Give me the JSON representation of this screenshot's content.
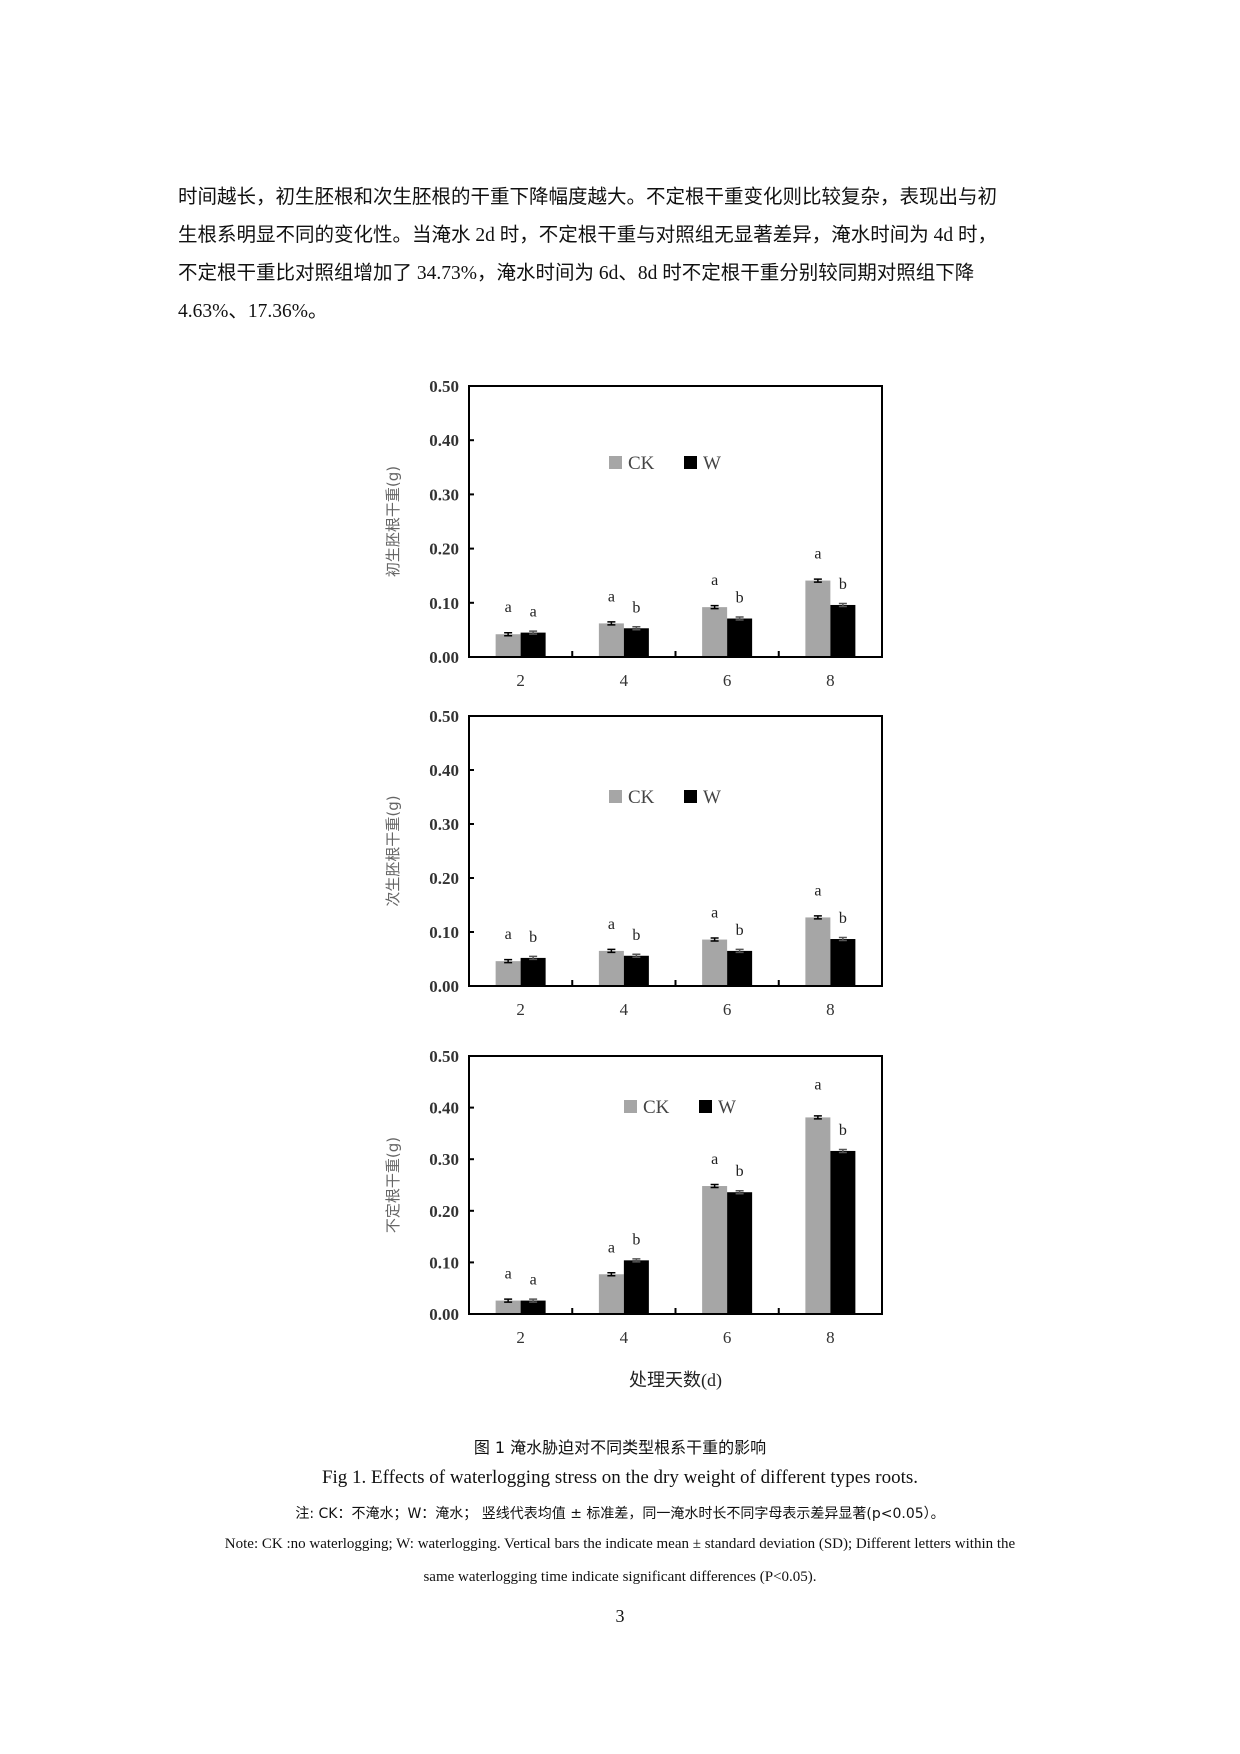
{
  "body_text": [
    "时间越长，初生胚根和次生胚根的干重下降幅度越大。不定根干重变化则比较复杂，表现出与初",
    "生根系明显不同的变化性。当淹水 2d 时，不定根干重与对照组无显著差异，淹水时间为 4d 时，",
    "不定根干重比对照组增加了 34.73%，淹水时间为 6d、8d 时不定根干重分别较同期对照组下降",
    "4.63%、17.36%。"
  ],
  "chart_data": [
    {
      "type": "bar",
      "categories": [
        "2",
        "4",
        "6",
        "8"
      ],
      "ylabel": "初生胚根干重(g)",
      "xlabel": "",
      "ylim": [
        0,
        0.5
      ],
      "yticks": [
        "0.00",
        "0.10",
        "0.20",
        "0.30",
        "0.40",
        "0.50"
      ],
      "legend": "top-center",
      "series": [
        {
          "name": "CK",
          "color": "#a6a6a6",
          "values": [
            0.042,
            0.062,
            0.092,
            0.141
          ],
          "letters": [
            "a",
            "a",
            "a",
            "a"
          ]
        },
        {
          "name": "W",
          "color": "#000000",
          "values": [
            0.045,
            0.053,
            0.071,
            0.096
          ],
          "letters": [
            "a",
            "b",
            "b",
            "b"
          ]
        }
      ]
    },
    {
      "type": "bar",
      "categories": [
        "2",
        "4",
        "6",
        "8"
      ],
      "ylabel": "次生胚根干重(g)",
      "xlabel": "",
      "ylim": [
        0,
        0.5
      ],
      "yticks": [
        "0.00",
        "0.10",
        "0.20",
        "0.30",
        "0.40",
        "0.50"
      ],
      "legend": "top-center",
      "series": [
        {
          "name": "CK",
          "color": "#a6a6a6",
          "values": [
            0.046,
            0.065,
            0.086,
            0.127
          ],
          "letters": [
            "a",
            "a",
            "a",
            "a"
          ]
        },
        {
          "name": "W",
          "color": "#000000",
          "values": [
            0.052,
            0.056,
            0.065,
            0.087
          ],
          "letters": [
            "b",
            "b",
            "b",
            "b"
          ]
        }
      ]
    },
    {
      "type": "bar",
      "categories": [
        "2",
        "4",
        "6",
        "8"
      ],
      "ylabel": "不定根干重(g)",
      "xlabel": "处理天数(d)",
      "ylim": [
        0,
        0.5
      ],
      "yticks": [
        "0.00",
        "0.10",
        "0.20",
        "0.30",
        "0.40",
        "0.50"
      ],
      "legend": "top-center",
      "series": [
        {
          "name": "CK",
          "color": "#a6a6a6",
          "values": [
            0.026,
            0.077,
            0.248,
            0.381
          ],
          "letters": [
            "a",
            "a",
            "a",
            "a"
          ]
        },
        {
          "name": "W",
          "color": "#000000",
          "values": [
            0.026,
            0.104,
            0.236,
            0.316
          ],
          "letters": [
            "a",
            "b",
            "b",
            "b"
          ]
        }
      ]
    }
  ],
  "caption": {
    "title_cn": "图 1  淹水胁迫对不同类型根系干重的影响",
    "title_en": "Fig 1. Effects of waterlogging stress on the dry weight of different types roots.",
    "note_cn": "注: CK：不淹水；W：淹水；  竖线代表均值 ± 标准差，同一淹水时长不同字母表示差异显著(p<0.05）。",
    "note_en_1": "Note: CK :no waterlogging; W: waterlogging. Vertical bars the indicate mean ± standard deviation (SD); Different letters within the",
    "note_en_2": "same waterlogging time indicate significant differences (P<0.05)."
  },
  "page_number": "3"
}
